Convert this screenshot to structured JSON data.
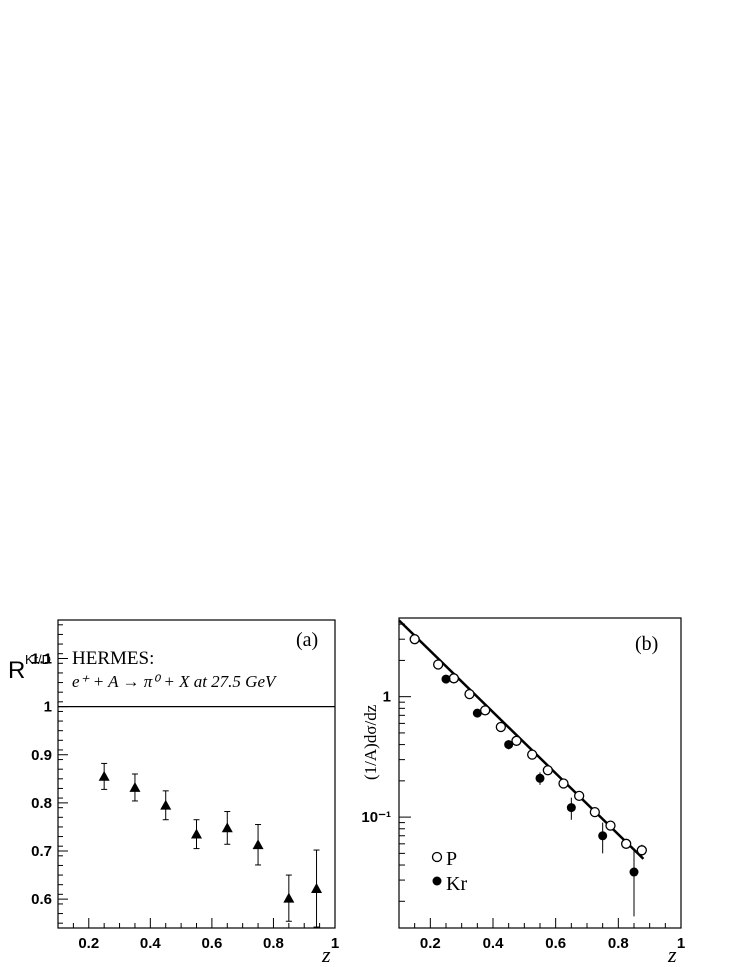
{
  "chart_data": [
    {
      "type": "scatter",
      "panel_label": "(a)",
      "ylabel_main": "R",
      "ylabel_sub": "Kr/D",
      "xlabel": "z",
      "annotation_line1": "HERMES:",
      "annotation_line2": "e⁺ + A → π⁰ + X  at 27.5 GeV",
      "xlim": [
        0.1,
        1.0
      ],
      "ylim": [
        0.54,
        1.18
      ],
      "xticks": [
        0.2,
        0.4,
        0.6,
        0.8,
        1.0
      ],
      "xtick_labels": [
        "0.2",
        "0.4",
        "0.6",
        "0.8",
        "1"
      ],
      "yticks": [
        0.6,
        0.7,
        0.8,
        0.9,
        1.0,
        1.1
      ],
      "ytick_labels": [
        "0.6",
        "0.7",
        "0.8",
        "0.9",
        "1",
        "1.1"
      ],
      "reference_line": 1.0,
      "marker": "triangle",
      "series": [
        {
          "x": [
            0.25,
            0.35,
            0.45,
            0.55,
            0.65,
            0.75,
            0.85,
            0.94
          ],
          "y": [
            0.855,
            0.832,
            0.795,
            0.735,
            0.748,
            0.713,
            0.602,
            0.622
          ],
          "err": [
            0.027,
            0.028,
            0.03,
            0.03,
            0.034,
            0.042,
            0.048,
            0.08
          ]
        }
      ]
    },
    {
      "type": "scatter",
      "panel_label": "(b)",
      "ylabel": "(1/A)dσ/dz",
      "xlabel": "z",
      "xlim": [
        0.1,
        1.0
      ],
      "ylim": [
        0.012,
        4.5
      ],
      "yscale": "log",
      "xticks": [
        0.2,
        0.4,
        0.6,
        0.8,
        1.0
      ],
      "xtick_labels": [
        "0.2",
        "0.4",
        "0.6",
        "0.8",
        "1"
      ],
      "yticks_major": [
        0.1,
        1.0
      ],
      "ytick_labels": [
        "10⁻¹",
        "1"
      ],
      "legend_position": "bottom-left",
      "series": [
        {
          "name": "P",
          "marker": "open-circle",
          "x": [
            0.15,
            0.225,
            0.275,
            0.325,
            0.375,
            0.425,
            0.475,
            0.525,
            0.575,
            0.625,
            0.675,
            0.725,
            0.775,
            0.825,
            0.875
          ],
          "y": [
            3.0,
            1.85,
            1.42,
            1.05,
            0.77,
            0.56,
            0.43,
            0.33,
            0.245,
            0.19,
            0.15,
            0.11,
            0.085,
            0.06,
            0.053
          ],
          "err": [
            0,
            0,
            0,
            0,
            0,
            0,
            0,
            0,
            0,
            0,
            0,
            0,
            0,
            0.005,
            0.006
          ]
        },
        {
          "name": "Kr",
          "marker": "filled-circle",
          "x": [
            0.25,
            0.35,
            0.45,
            0.55,
            0.65,
            0.75,
            0.85
          ],
          "y": [
            1.4,
            0.73,
            0.4,
            0.21,
            0.12,
            0.07,
            0.035
          ],
          "err": [
            0.06,
            0.04,
            0.035,
            0.025,
            0.025,
            0.02,
            0.02
          ]
        }
      ],
      "fit_line": {
        "x": [
          0.1,
          0.88
        ],
        "y": [
          4.3,
          0.045
        ]
      }
    }
  ]
}
